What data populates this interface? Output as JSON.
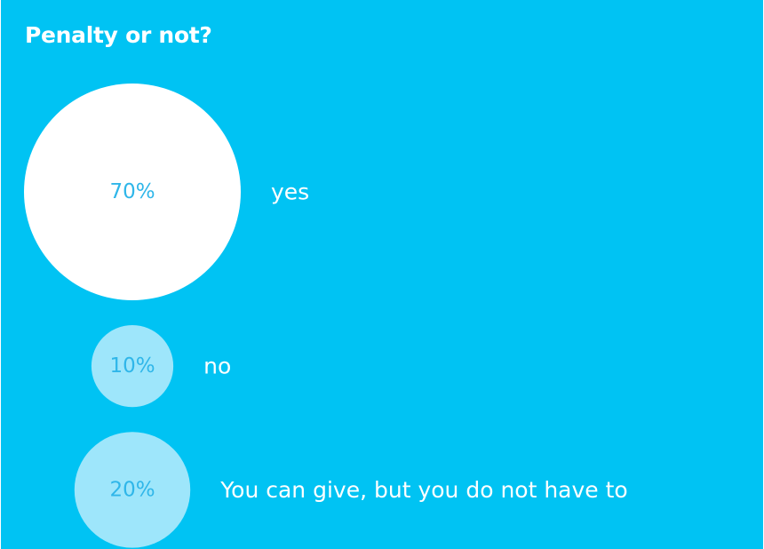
{
  "title": "Penalty or not?",
  "colors": {
    "background": "#00c3f3",
    "title_text": "#ffffff",
    "label_text": "#ffffff",
    "percent_text": "#2fb6e9",
    "bubble_largest": "#ffffff",
    "bubble_other": "#9ee6fb"
  },
  "chart_data": {
    "type": "bubble",
    "title": "Penalty or not?",
    "unit": "%",
    "categories": [
      "yes",
      "no",
      "You can give, but you do not have to"
    ],
    "values": [
      70,
      10,
      20
    ],
    "value_labels": [
      "70%",
      "10%",
      "20%"
    ],
    "legend": "none",
    "grid": false
  }
}
